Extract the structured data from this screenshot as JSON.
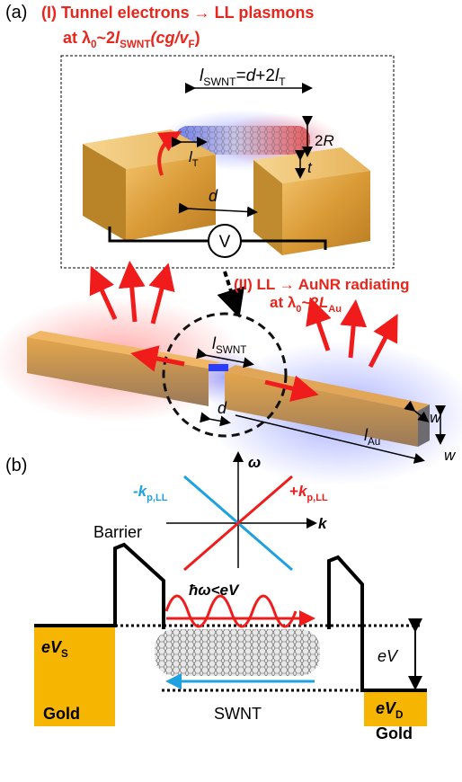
{
  "panel_a": {
    "label": "(a)",
    "title_line1": "(I) Tunnel electrons → LL plasmons",
    "title_line2": [
      "at λ",
      "0",
      "~2",
      "l",
      "SWNT",
      "(cg/v",
      "F",
      ")"
    ],
    "inset": {
      "l_swnt": [
        "l",
        "SWNT",
        "=",
        "d",
        "+2",
        "l",
        "T"
      ],
      "diameter": [
        "2",
        "R"
      ],
      "gap_t": "t",
      "l_t": [
        "l",
        "T"
      ],
      "gap_d": "d",
      "voltage": "V"
    },
    "part2_line1": "(II) LL → AuNR radiating",
    "part2_line2": [
      "at λ",
      "0",
      "~2",
      "L",
      "Au"
    ],
    "rod": {
      "l_swnt": [
        "l",
        "SWNT"
      ],
      "gap_d": "d",
      "l_au": [
        "l",
        "Au"
      ],
      "width_top": "w",
      "width_side": "w"
    }
  },
  "panel_b": {
    "label": "(b)",
    "axis_omega": "ω",
    "axis_k": "k",
    "minus_k": [
      "-",
      "k",
      "p,LL"
    ],
    "plus_k": [
      "+",
      "k",
      "p,LL"
    ],
    "barrier": "Barrier",
    "condition": "ħω<eV",
    "ev_s": [
      "eV",
      "S"
    ],
    "bias": "eV",
    "ev_d": [
      "eV",
      "D"
    ],
    "gold_left": "Gold",
    "swnt": "SWNT",
    "gold_right": "Gold"
  }
}
